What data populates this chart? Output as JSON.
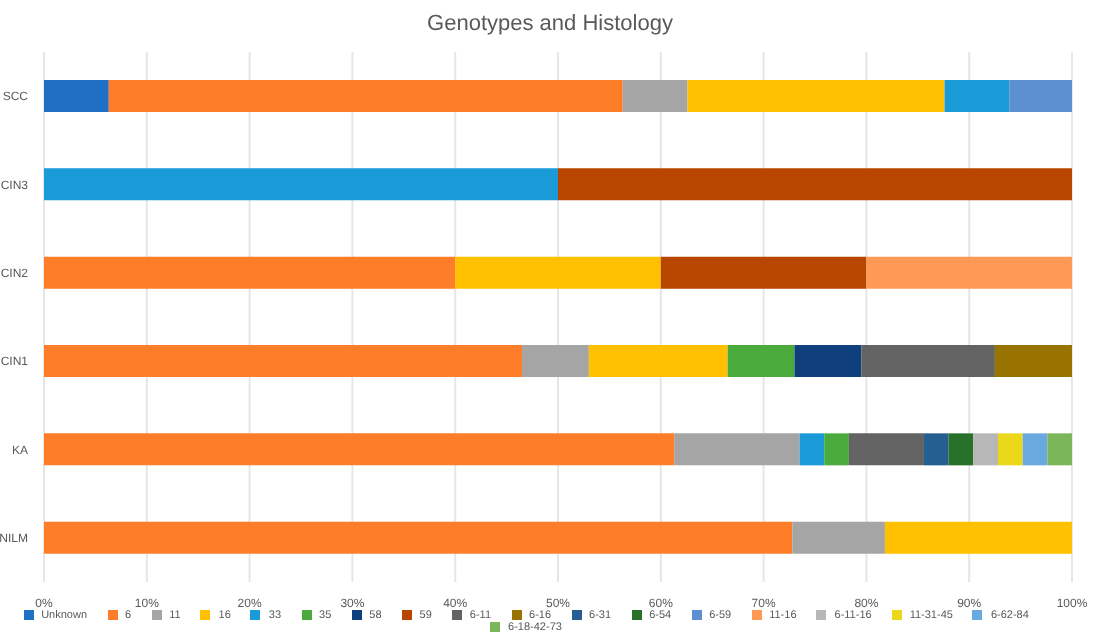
{
  "chart_data": {
    "type": "bar",
    "title": "Genotypes and Histology",
    "orientation": "horizontal",
    "stacked": true,
    "categories": [
      "SCC",
      "CIN3",
      "CIN2",
      "CIN1",
      "KA",
      "NILM"
    ],
    "xlim": [
      0,
      100
    ],
    "xticks": [
      {
        "value": 0,
        "label": "0%"
      },
      {
        "value": 10,
        "label": "10%"
      },
      {
        "value": 20,
        "label": "20%"
      },
      {
        "value": 30,
        "label": "30%"
      },
      {
        "value": 40,
        "label": "40%"
      },
      {
        "value": 50,
        "label": "50%"
      },
      {
        "value": 60,
        "label": "60%"
      },
      {
        "value": 70,
        "label": "70%"
      },
      {
        "value": 80,
        "label": "80%"
      },
      {
        "value": 90,
        "label": "90%"
      },
      {
        "value": 100,
        "label": "100%"
      }
    ],
    "grid": "x",
    "legend": "bottom",
    "series": [
      {
        "name": "Unknown",
        "color": "#1f6fc5",
        "values": [
          6.3,
          0,
          0,
          0,
          0,
          0
        ]
      },
      {
        "name": "6",
        "color": "#fe7d28",
        "values": [
          50,
          0,
          40,
          46.5,
          61.3,
          72.8
        ]
      },
      {
        "name": "11",
        "color": "#a5a5a5",
        "values": [
          6.3,
          0,
          0,
          6.5,
          12.2,
          9
        ]
      },
      {
        "name": "16",
        "color": "#ffc000",
        "values": [
          25,
          0,
          20,
          13.5,
          0,
          18.2
        ]
      },
      {
        "name": "33",
        "color": "#1a9ad6",
        "values": [
          6.3,
          50,
          0,
          0,
          2.4,
          0
        ]
      },
      {
        "name": "35",
        "color": "#4aaa3c",
        "values": [
          0,
          0,
          0,
          6.5,
          2.4,
          0
        ]
      },
      {
        "name": "58",
        "color": "#0f3f7c",
        "values": [
          0,
          0,
          0,
          6.5,
          0,
          0
        ]
      },
      {
        "name": "59",
        "color": "#b84500",
        "values": [
          0,
          50,
          20,
          0,
          0,
          0
        ]
      },
      {
        "name": "6-11",
        "color": "#636363",
        "values": [
          0,
          0,
          0,
          13,
          7.3,
          0
        ]
      },
      {
        "name": "6-16",
        "color": "#997300",
        "values": [
          0,
          0,
          0,
          7.5,
          0,
          0
        ]
      },
      {
        "name": "6-31",
        "color": "#255e91",
        "values": [
          0,
          0,
          0,
          0,
          2.4,
          0
        ]
      },
      {
        "name": "6-54",
        "color": "#27712b",
        "values": [
          0,
          0,
          0,
          0,
          2.4,
          0
        ]
      },
      {
        "name": "6-59",
        "color": "#5b8fd0",
        "values": [
          6.2,
          0,
          0,
          0,
          0,
          0
        ]
      },
      {
        "name": "11-16",
        "color": "#ff9955",
        "values": [
          0,
          0,
          20,
          0,
          0,
          0
        ]
      },
      {
        "name": "6-11-16",
        "color": "#b7b7b7",
        "values": [
          0,
          0,
          0,
          0,
          2.4,
          0
        ]
      },
      {
        "name": "11-31-45",
        "color": "#ecd81a",
        "values": [
          0,
          0,
          0,
          0,
          2.4,
          0
        ]
      },
      {
        "name": "6-62-84",
        "color": "#6aa8e0",
        "values": [
          0,
          0,
          0,
          0,
          2.4,
          0
        ]
      },
      {
        "name": "6-18-42-73",
        "color": "#7cb65a",
        "values": [
          0,
          0,
          0,
          0,
          2.4,
          0
        ]
      }
    ]
  }
}
